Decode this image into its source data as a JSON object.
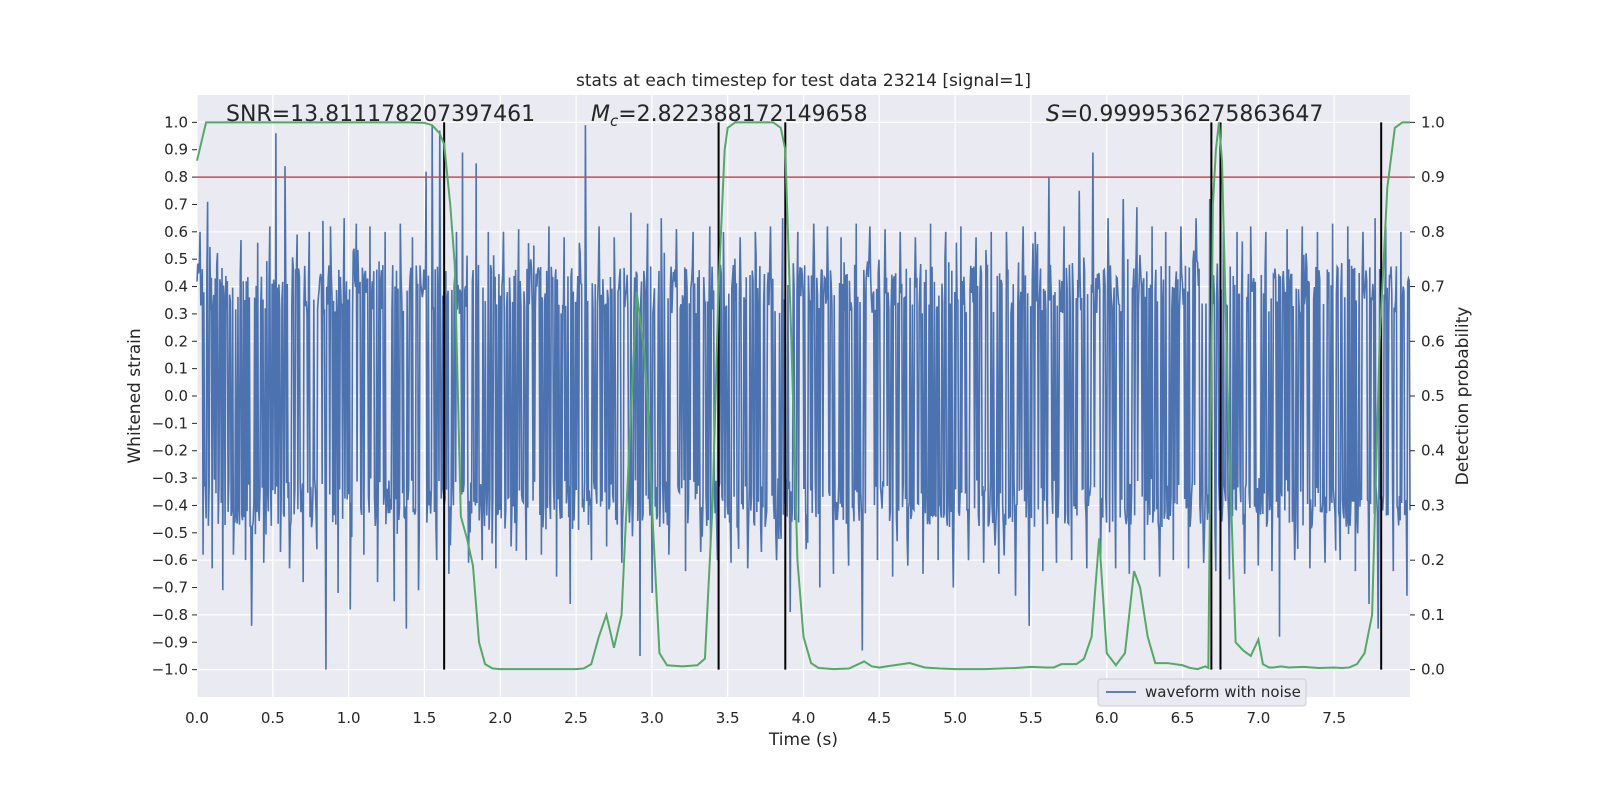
{
  "chart_data": {
    "type": "line",
    "title": "stats at each timestep for test data 23214 [signal=1]",
    "xlabel": "Time (s)",
    "ylabel": "Whitened strain",
    "ylabel_right": "Detection probability",
    "xlim": [
      0,
      8
    ],
    "ylim": [
      -1.1,
      1.1
    ],
    "ylim_right": [
      -0.05,
      1.05
    ],
    "x_ticks": [
      0.0,
      0.5,
      1.0,
      1.5,
      2.0,
      2.5,
      3.0,
      3.5,
      4.0,
      4.5,
      5.0,
      5.5,
      6.0,
      6.5,
      7.0,
      7.5
    ],
    "x_tick_labels": [
      "0.0",
      "0.5",
      "1.0",
      "1.5",
      "2.0",
      "2.5",
      "3.0",
      "3.5",
      "4.0",
      "4.5",
      "5.0",
      "5.5",
      "6.0",
      "6.5",
      "7.0",
      "7.5"
    ],
    "y_ticks": [
      1.0,
      0.9,
      0.8,
      0.7,
      0.6,
      0.5,
      0.4,
      0.3,
      0.2,
      0.1,
      0.0,
      -0.1,
      -0.2,
      -0.3,
      -0.4,
      -0.5,
      -0.6,
      -0.7,
      -0.8,
      -0.9,
      -1.0
    ],
    "y_tick_labels": [
      "1.0",
      "0.9",
      "0.8",
      "0.7",
      "0.6",
      "0.5",
      "0.4",
      "0.3",
      "0.2",
      "0.1",
      "0.0",
      "−0.1",
      "−0.2",
      "−0.3",
      "−0.4",
      "−0.5",
      "−0.6",
      "−0.7",
      "−0.8",
      "−0.9",
      "−1.0"
    ],
    "y_right_ticks": [
      1.0,
      0.9,
      0.8,
      0.7,
      0.6,
      0.5,
      0.4,
      0.3,
      0.2,
      0.1,
      0.0
    ],
    "y_right_tick_labels": [
      "1.0",
      "0.9",
      "0.8",
      "0.7",
      "0.6",
      "0.5",
      "0.4",
      "0.3",
      "0.2",
      "0.1",
      "0.0"
    ],
    "grid": true,
    "legend": {
      "location": "lower-right",
      "entries": [
        "waveform with noise"
      ]
    },
    "annotations": {
      "snr": "SNR=13.811178207397461",
      "mc_symbol": "M",
      "mc_sub": "c",
      "mc_value": "=2.822388172149658",
      "s_symbol": "S",
      "s_value": "=0.9999536275863647"
    },
    "threshold": {
      "value": 0.8,
      "color": "#c44e52"
    },
    "vertical_lines": [
      1.63,
      3.44,
      3.88,
      6.69,
      6.75,
      7.81
    ],
    "waveform": {
      "name": "waveform with noise",
      "color": "#4c72b0",
      "samples": 1600,
      "seed": 23214,
      "typical_amplitude": 0.4,
      "spikes": [
        [
          0.02,
          0.6
        ],
        [
          0.04,
          -0.58
        ],
        [
          0.07,
          0.71
        ],
        [
          0.1,
          -0.63
        ],
        [
          0.12,
          0.43
        ],
        [
          0.17,
          -0.71
        ],
        [
          0.2,
          0.42
        ],
        [
          0.24,
          -0.58
        ],
        [
          0.29,
          0.57
        ],
        [
          0.32,
          -0.6
        ],
        [
          0.36,
          -0.84
        ],
        [
          0.4,
          0.56
        ],
        [
          0.44,
          -0.61
        ],
        [
          0.48,
          0.62
        ],
        [
          0.52,
          0.96
        ],
        [
          0.55,
          -0.57
        ],
        [
          0.58,
          0.84
        ],
        [
          0.61,
          -0.63
        ],
        [
          0.66,
          0.59
        ],
        [
          0.7,
          -0.68
        ],
        [
          0.74,
          0.6
        ],
        [
          0.79,
          -0.56
        ],
        [
          0.83,
          0.64
        ],
        [
          0.85,
          -1.0
        ],
        [
          0.88,
          0.62
        ],
        [
          0.93,
          -0.72
        ],
        [
          0.97,
          0.65
        ],
        [
          1.01,
          -0.78
        ],
        [
          1.05,
          0.63
        ],
        [
          1.1,
          -0.58
        ],
        [
          1.14,
          0.62
        ],
        [
          1.19,
          -0.68
        ],
        [
          1.24,
          0.6
        ],
        [
          1.3,
          -0.75
        ],
        [
          1.34,
          0.63
        ],
        [
          1.38,
          -0.85
        ],
        [
          1.42,
          0.58
        ],
        [
          1.46,
          -0.71
        ],
        [
          1.51,
          0.82
        ],
        [
          1.55,
          0.99
        ],
        [
          1.58,
          -0.6
        ],
        [
          1.6,
          0.97
        ],
        [
          1.66,
          -0.65
        ],
        [
          1.71,
          0.6
        ],
        [
          1.75,
          0.89
        ],
        [
          1.79,
          -0.61
        ],
        [
          1.84,
          0.85
        ],
        [
          1.88,
          -0.6
        ],
        [
          1.92,
          0.6
        ],
        [
          1.97,
          -0.63
        ],
        [
          2.02,
          0.6
        ],
        [
          2.07,
          -0.55
        ],
        [
          2.12,
          0.61
        ],
        [
          2.17,
          -0.6
        ],
        [
          2.22,
          0.55
        ],
        [
          2.27,
          -0.58
        ],
        [
          2.32,
          0.62
        ],
        [
          2.37,
          -0.66
        ],
        [
          2.42,
          0.58
        ],
        [
          2.46,
          -0.76
        ],
        [
          2.52,
          0.56
        ],
        [
          2.56,
          0.99
        ],
        [
          2.6,
          -0.6
        ],
        [
          2.65,
          0.62
        ],
        [
          2.7,
          -0.55
        ],
        [
          2.75,
          0.58
        ],
        [
          2.8,
          -0.61
        ],
        [
          2.86,
          0.67
        ],
        [
          2.92,
          -0.95
        ],
        [
          2.97,
          0.63
        ],
        [
          3.0,
          -0.72
        ],
        [
          3.06,
          0.65
        ],
        [
          3.11,
          -0.58
        ],
        [
          3.16,
          0.61
        ],
        [
          3.22,
          -0.64
        ],
        [
          3.27,
          0.6
        ],
        [
          3.32,
          -0.57
        ],
        [
          3.38,
          0.62
        ],
        [
          3.43,
          -0.6
        ],
        [
          3.47,
          0.6
        ],
        [
          3.52,
          -0.61
        ],
        [
          3.58,
          0.58
        ],
        [
          3.63,
          -0.63
        ],
        [
          3.68,
          0.6
        ],
        [
          3.72,
          -0.57
        ],
        [
          3.78,
          0.62
        ],
        [
          3.82,
          -0.6
        ],
        [
          3.86,
          0.65
        ],
        [
          3.91,
          -0.79
        ],
        [
          3.96,
          0.6
        ],
        [
          4.02,
          -0.56
        ],
        [
          4.07,
          0.63
        ],
        [
          4.11,
          -0.7
        ],
        [
          4.16,
          0.62
        ],
        [
          4.2,
          -0.65
        ],
        [
          4.25,
          0.58
        ],
        [
          4.3,
          -0.62
        ],
        [
          4.35,
          0.63
        ],
        [
          4.39,
          -0.93
        ],
        [
          4.44,
          0.62
        ],
        [
          4.49,
          -0.6
        ],
        [
          4.54,
          0.61
        ],
        [
          4.59,
          -0.66
        ],
        [
          4.64,
          0.6
        ],
        [
          4.69,
          -0.62
        ],
        [
          4.74,
          0.58
        ],
        [
          4.79,
          -0.65
        ],
        [
          4.84,
          0.63
        ],
        [
          4.89,
          -0.6
        ],
        [
          4.94,
          0.6
        ],
        [
          4.99,
          -0.7
        ],
        [
          5.04,
          0.62
        ],
        [
          5.09,
          -0.6
        ],
        [
          5.14,
          0.58
        ],
        [
          5.19,
          -0.61
        ],
        [
          5.24,
          0.6
        ],
        [
          5.29,
          -0.65
        ],
        [
          5.34,
          0.6
        ],
        [
          5.4,
          -0.73
        ],
        [
          5.45,
          0.62
        ],
        [
          5.49,
          -0.84
        ],
        [
          5.53,
          0.6
        ],
        [
          5.58,
          -0.64
        ],
        [
          5.62,
          0.8
        ],
        [
          5.67,
          -0.61
        ],
        [
          5.72,
          0.62
        ],
        [
          5.77,
          -0.6
        ],
        [
          5.82,
          0.75
        ],
        [
          5.87,
          -0.63
        ],
        [
          5.91,
          0.89
        ],
        [
          5.96,
          -0.6
        ],
        [
          6.01,
          0.65
        ],
        [
          6.06,
          -0.63
        ],
        [
          6.11,
          0.72
        ],
        [
          6.15,
          -0.65
        ],
        [
          6.2,
          0.69
        ],
        [
          6.25,
          -0.6
        ],
        [
          6.3,
          0.62
        ],
        [
          6.35,
          -0.66
        ],
        [
          6.39,
          0.6
        ],
        [
          6.44,
          -0.6
        ],
        [
          6.49,
          0.62
        ],
        [
          6.54,
          -0.63
        ],
        [
          6.59,
          0.65
        ],
        [
          6.64,
          -0.61
        ],
        [
          6.68,
          0.72
        ],
        [
          6.72,
          -0.64
        ],
        [
          6.77,
          0.6
        ],
        [
          6.81,
          -0.67
        ],
        [
          6.86,
          0.6
        ],
        [
          6.91,
          -0.65
        ],
        [
          6.95,
          0.62
        ],
        [
          7.0,
          -0.62
        ],
        [
          7.05,
          0.6
        ],
        [
          7.09,
          -0.64
        ],
        [
          7.14,
          -0.88
        ],
        [
          7.19,
          0.61
        ],
        [
          7.24,
          -0.6
        ],
        [
          7.29,
          0.62
        ],
        [
          7.34,
          -0.63
        ],
        [
          7.39,
          0.6
        ],
        [
          7.44,
          -0.61
        ],
        [
          7.49,
          0.63
        ],
        [
          7.54,
          -0.6
        ],
        [
          7.59,
          0.62
        ],
        [
          7.64,
          -0.64
        ],
        [
          7.69,
          0.6
        ],
        [
          7.73,
          -0.76
        ],
        [
          7.77,
          0.65
        ],
        [
          7.79,
          -0.85
        ],
        [
          7.84,
          0.62
        ],
        [
          7.89,
          -0.64
        ],
        [
          7.94,
          0.6
        ],
        [
          7.98,
          -0.73
        ]
      ]
    },
    "probability": {
      "color": "#55a868",
      "x": [
        0.0,
        0.06,
        0.12,
        0.2,
        0.4,
        0.6,
        0.8,
        1.0,
        1.2,
        1.4,
        1.5,
        1.55,
        1.6,
        1.63,
        1.67,
        1.7,
        1.74,
        1.78,
        1.82,
        1.86,
        1.9,
        1.95,
        2.0,
        2.1,
        2.2,
        2.3,
        2.4,
        2.5,
        2.55,
        2.6,
        2.65,
        2.7,
        2.75,
        2.8,
        2.85,
        2.9,
        2.95,
        2.98,
        3.0,
        3.05,
        3.1,
        3.2,
        3.3,
        3.35,
        3.4,
        3.44,
        3.48,
        3.5,
        3.55,
        3.6,
        3.7,
        3.8,
        3.85,
        3.88,
        3.92,
        3.96,
        4.0,
        4.05,
        4.1,
        4.2,
        4.3,
        4.4,
        4.45,
        4.5,
        4.6,
        4.7,
        4.8,
        4.9,
        5.0,
        5.1,
        5.2,
        5.3,
        5.4,
        5.5,
        5.6,
        5.65,
        5.7,
        5.8,
        5.85,
        5.9,
        5.95,
        6.0,
        6.06,
        6.12,
        6.18,
        6.22,
        6.27,
        6.32,
        6.4,
        6.5,
        6.55,
        6.6,
        6.65,
        6.67,
        6.7,
        6.72,
        6.74,
        6.76,
        6.8,
        6.85,
        6.9,
        6.95,
        7.0,
        7.03,
        7.07,
        7.1,
        7.15,
        7.2,
        7.3,
        7.4,
        7.5,
        7.55,
        7.6,
        7.65,
        7.7,
        7.75,
        7.8,
        7.85,
        7.9,
        7.95,
        8.0
      ],
      "y": [
        0.93,
        1.0,
        1.0,
        1.0,
        1.0,
        1.0,
        1.0,
        1.0,
        1.0,
        1.0,
        0.999,
        0.995,
        0.98,
        0.96,
        0.85,
        0.74,
        0.28,
        0.24,
        0.19,
        0.05,
        0.01,
        0.002,
        0.001,
        0.001,
        0.001,
        0.001,
        0.001,
        0.001,
        0.002,
        0.01,
        0.06,
        0.1,
        0.04,
        0.1,
        0.4,
        0.69,
        0.58,
        0.45,
        0.3,
        0.03,
        0.008,
        0.006,
        0.008,
        0.02,
        0.3,
        0.7,
        0.95,
        0.99,
        1.0,
        1.0,
        1.0,
        1.0,
        0.99,
        0.95,
        0.6,
        0.2,
        0.06,
        0.012,
        0.003,
        0.001,
        0.002,
        0.015,
        0.006,
        0.004,
        0.008,
        0.012,
        0.004,
        0.002,
        0.001,
        0.001,
        0.001,
        0.002,
        0.003,
        0.005,
        0.004,
        0.004,
        0.01,
        0.01,
        0.02,
        0.06,
        0.24,
        0.03,
        0.008,
        0.03,
        0.18,
        0.15,
        0.06,
        0.012,
        0.012,
        0.008,
        0.003,
        0.001,
        0.006,
        0.003,
        0.85,
        0.95,
        1.0,
        0.93,
        0.48,
        0.05,
        0.035,
        0.025,
        0.055,
        0.01,
        0.004,
        0.004,
        0.006,
        0.004,
        0.005,
        0.003,
        0.004,
        0.003,
        0.004,
        0.01,
        0.03,
        0.1,
        0.6,
        0.88,
        0.99,
        1.0,
        1.0
      ]
    }
  }
}
